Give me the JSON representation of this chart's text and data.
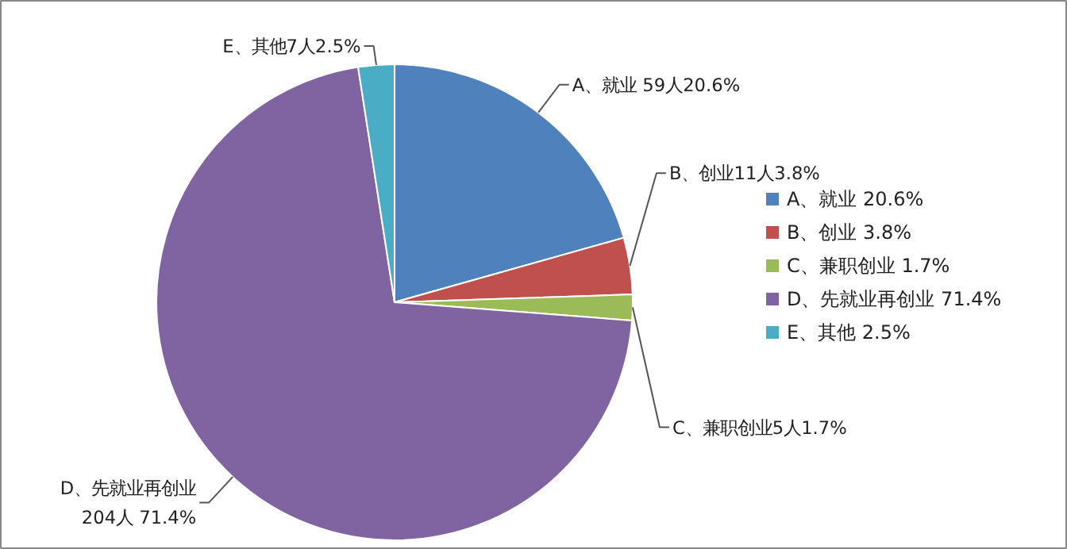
{
  "chart_data": {
    "type": "pie",
    "categories": [
      "A、就业 20.6%",
      "B、创业 3.8%",
      "C、兼职创业 1.7%",
      "D、先就业再创业 71.4%",
      "E、其他 2.5%"
    ],
    "values": [
      59,
      11,
      5,
      204,
      7
    ],
    "colors": [
      "#4f81bd",
      "#c0504d",
      "#9bbb59",
      "#8064a2",
      "#4bacc6"
    ],
    "value_labels": [
      "A、就业 59人20.6%",
      "B、创业11人3.8%",
      "C、兼职创业5人1.7%",
      "D、先就业再创业\n204人 71.4%",
      "E、其他7人2.5%"
    ],
    "legend": "right"
  }
}
